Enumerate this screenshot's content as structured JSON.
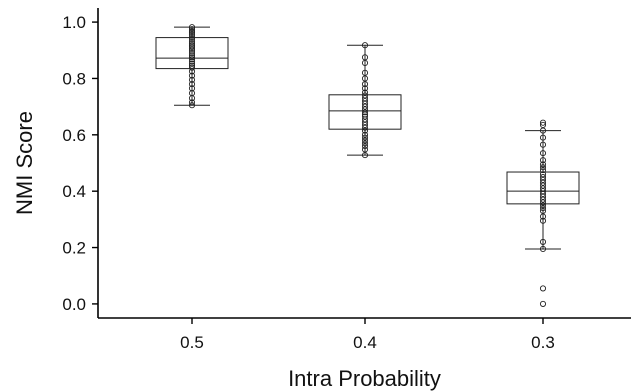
{
  "chart_data": {
    "type": "box",
    "title": "",
    "xlabel": "Intra Probability",
    "ylabel": "NMI Score",
    "ylim": [
      -0.05,
      1.05
    ],
    "yticks": [
      0.0,
      0.2,
      0.4,
      0.6,
      0.8,
      1.0
    ],
    "ytick_labels": [
      "0.0",
      "0.2",
      "0.4",
      "0.6",
      "0.8",
      "1.0"
    ],
    "categories": [
      "0.5",
      "0.4",
      "0.3"
    ],
    "grid": false,
    "legend": "none",
    "boxes": [
      {
        "category": "0.5",
        "whisker_low": 0.705,
        "q1": 0.835,
        "median": 0.872,
        "q3": 0.945,
        "whisker_high": 0.982,
        "points": [
          0.982,
          0.975,
          0.968,
          0.962,
          0.955,
          0.947,
          0.94,
          0.932,
          0.925,
          0.918,
          0.912,
          0.905,
          0.898,
          0.89,
          0.882,
          0.875,
          0.868,
          0.86,
          0.852,
          0.845,
          0.838,
          0.825,
          0.81,
          0.795,
          0.78,
          0.765,
          0.748,
          0.73,
          0.715,
          0.705
        ]
      },
      {
        "category": "0.4",
        "whisker_low": 0.528,
        "q1": 0.62,
        "median": 0.685,
        "q3": 0.742,
        "whisker_high": 0.918,
        "points": [
          0.918,
          0.875,
          0.855,
          0.82,
          0.8,
          0.78,
          0.765,
          0.75,
          0.74,
          0.73,
          0.72,
          0.71,
          0.7,
          0.69,
          0.68,
          0.672,
          0.665,
          0.655,
          0.645,
          0.635,
          0.625,
          0.615,
          0.6,
          0.59,
          0.58,
          0.57,
          0.56,
          0.548,
          0.528
        ]
      },
      {
        "category": "0.3",
        "whisker_low": 0.195,
        "q1": 0.355,
        "median": 0.4,
        "q3": 0.468,
        "whisker_high": 0.615,
        "points": [
          0.643,
          0.635,
          0.615,
          0.59,
          0.565,
          0.535,
          0.51,
          0.495,
          0.485,
          0.475,
          0.46,
          0.45,
          0.44,
          0.43,
          0.42,
          0.41,
          0.4,
          0.39,
          0.38,
          0.37,
          0.36,
          0.35,
          0.34,
          0.33,
          0.31,
          0.295,
          0.22,
          0.195,
          0.055,
          0.0
        ]
      }
    ]
  }
}
